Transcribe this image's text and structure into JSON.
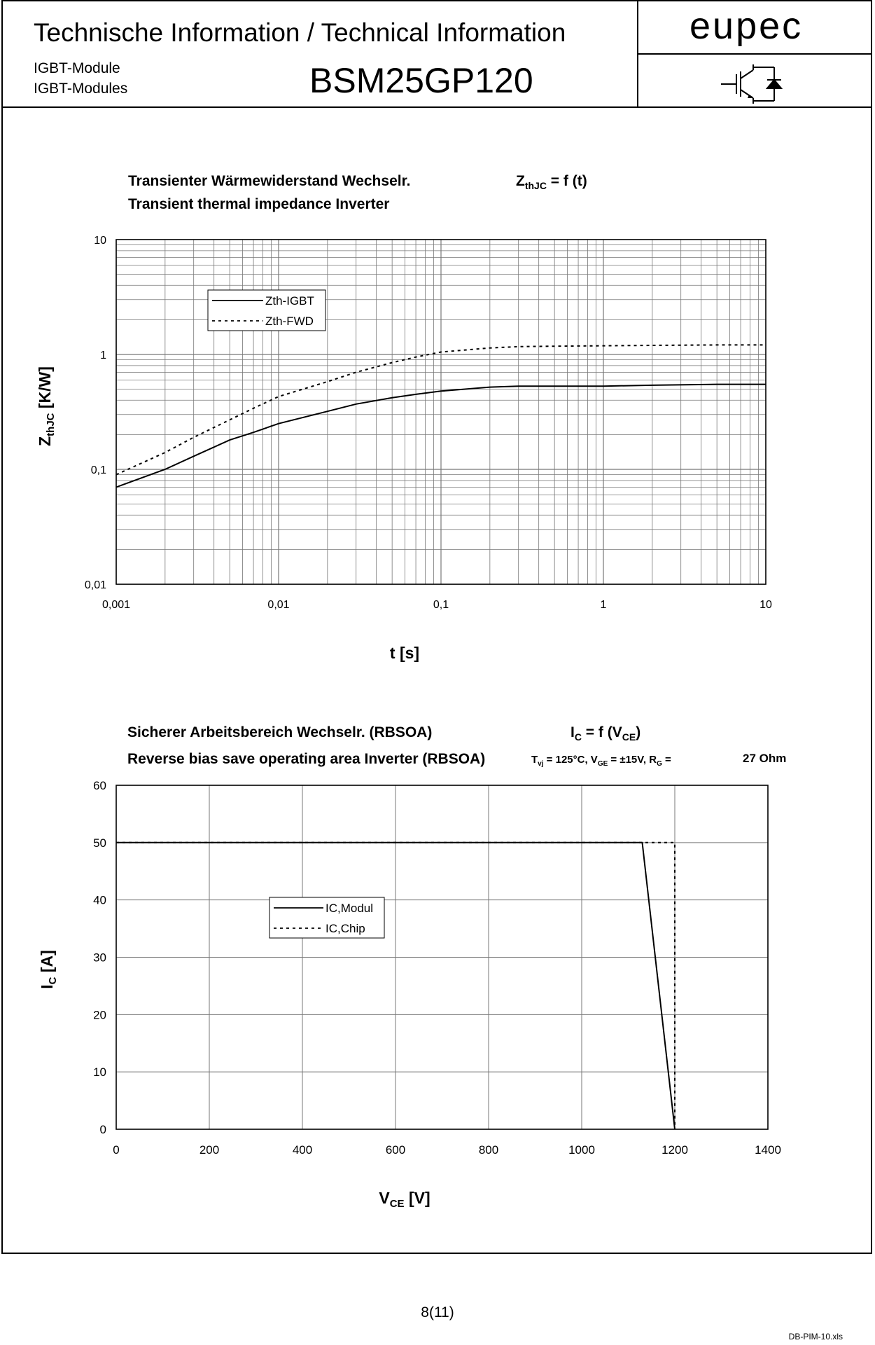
{
  "header": {
    "title": "Technische Information / Technical Information",
    "sub1": "IGBT-Module",
    "sub2": "IGBT-Modules",
    "part_number": "BSM25GP120",
    "logo": "eupec",
    "symbol_icon": "igbt-symbol-icon"
  },
  "chart_data": [
    {
      "type": "line",
      "title_de": "Transienter Wärmewiderstand Wechselr.",
      "title_en": "Transient thermal impedance Inverter",
      "formula": {
        "main": "Z",
        "sub": "thJC",
        "rest": " = f (t)"
      },
      "xlabel": "t [s]",
      "ylabel": {
        "main": "Z",
        "sub": "thJC",
        "rest": " [K/W]"
      },
      "xscale": "log",
      "yscale": "log",
      "xlim": [
        0.001,
        10
      ],
      "ylim": [
        0.01,
        10
      ],
      "x_ticks": [
        "0,001",
        "0,01",
        "0,1",
        "1",
        "10"
      ],
      "y_ticks": [
        "0,01",
        "0,1",
        "1",
        "10"
      ],
      "legend_position": "top-left",
      "series": [
        {
          "name": "Zth-IGBT",
          "style": "solid",
          "x": [
            0.001,
            0.002,
            0.003,
            0.005,
            0.007,
            0.01,
            0.02,
            0.03,
            0.05,
            0.07,
            0.1,
            0.2,
            0.3,
            0.5,
            1,
            2,
            5,
            10
          ],
          "y": [
            0.07,
            0.1,
            0.13,
            0.18,
            0.21,
            0.25,
            0.32,
            0.37,
            0.42,
            0.45,
            0.48,
            0.52,
            0.53,
            0.53,
            0.53,
            0.54,
            0.55,
            0.55
          ]
        },
        {
          "name": "Zth-FWD",
          "style": "dashed",
          "x": [
            0.001,
            0.002,
            0.003,
            0.005,
            0.007,
            0.01,
            0.02,
            0.03,
            0.05,
            0.07,
            0.1,
            0.2,
            0.3,
            0.5,
            1,
            2,
            5,
            10
          ],
          "y": [
            0.09,
            0.14,
            0.19,
            0.27,
            0.34,
            0.43,
            0.58,
            0.7,
            0.85,
            0.95,
            1.05,
            1.14,
            1.17,
            1.18,
            1.19,
            1.2,
            1.21,
            1.21
          ]
        }
      ]
    },
    {
      "type": "line",
      "title_de": "Sicherer Arbeitsbereich Wechselr. (RBSOA)",
      "title_en": "Reverse bias save operating area Inverter (RBSOA)",
      "formula": {
        "main": "I",
        "sub": "C",
        "rest": " = f (V",
        "sub2": "CE",
        "rest2": ")"
      },
      "conditions": "Tvj = 125°C, VGE = ±15V, RG =",
      "conditions_parts": {
        "t": "T",
        "t_sub": "vj",
        "t_rest": " = 125°C, V",
        "v_sub": "GE",
        "v_rest": " = ±15V, R",
        "r_sub": "G",
        "r_rest": " ="
      },
      "rg_value": "27 Ohm",
      "xlabel": {
        "main": "V",
        "sub": "CE",
        "rest": " [V]"
      },
      "ylabel": {
        "main": "I",
        "sub": "C",
        "rest": " [A]"
      },
      "xlim": [
        0,
        1400
      ],
      "ylim": [
        0,
        60
      ],
      "x_ticks": [
        "0",
        "200",
        "400",
        "600",
        "800",
        "1000",
        "1200",
        "1400"
      ],
      "y_ticks": [
        "0",
        "10",
        "20",
        "30",
        "40",
        "50",
        "60"
      ],
      "legend_position": "center-left",
      "series": [
        {
          "name": "IC,Modul",
          "style": "solid",
          "x": [
            0,
            1130,
            1200
          ],
          "y": [
            50,
            50,
            0
          ]
        },
        {
          "name": "IC,Chip",
          "style": "dashed",
          "x": [
            0,
            1200,
            1200
          ],
          "y": [
            50,
            50,
            0
          ]
        }
      ]
    }
  ],
  "footer": {
    "page": "8(11)",
    "file": "DB-PIM-10.xls"
  }
}
